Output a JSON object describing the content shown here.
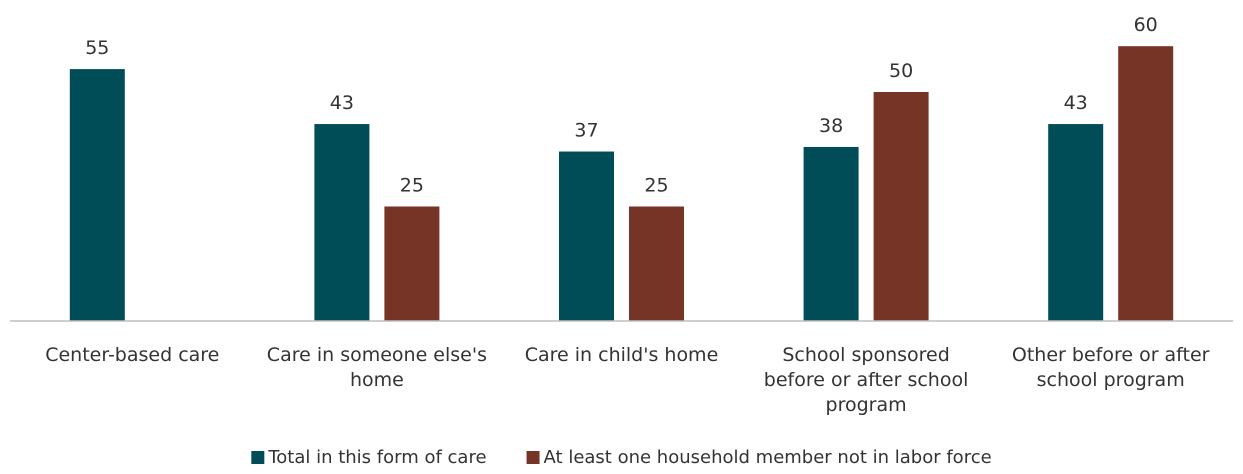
{
  "chart_data": {
    "type": "bar",
    "categories": [
      [
        "Center-based care"
      ],
      [
        "Care in someone else's",
        "home"
      ],
      [
        "Care in child's home"
      ],
      [
        "School sponsored",
        "before or after school",
        "program"
      ],
      [
        "Other before or after",
        "school program"
      ]
    ],
    "series": [
      {
        "name": "Total in this form of care",
        "color": "#004c57",
        "values": [
          55,
          43,
          37,
          38,
          43
        ]
      },
      {
        "name": "At least one household member not in labor force",
        "color": "#763426",
        "values": [
          null,
          25,
          25,
          50,
          60
        ]
      }
    ],
    "ylim": [
      0,
      60
    ],
    "grid": false,
    "legend_position": "bottom"
  }
}
